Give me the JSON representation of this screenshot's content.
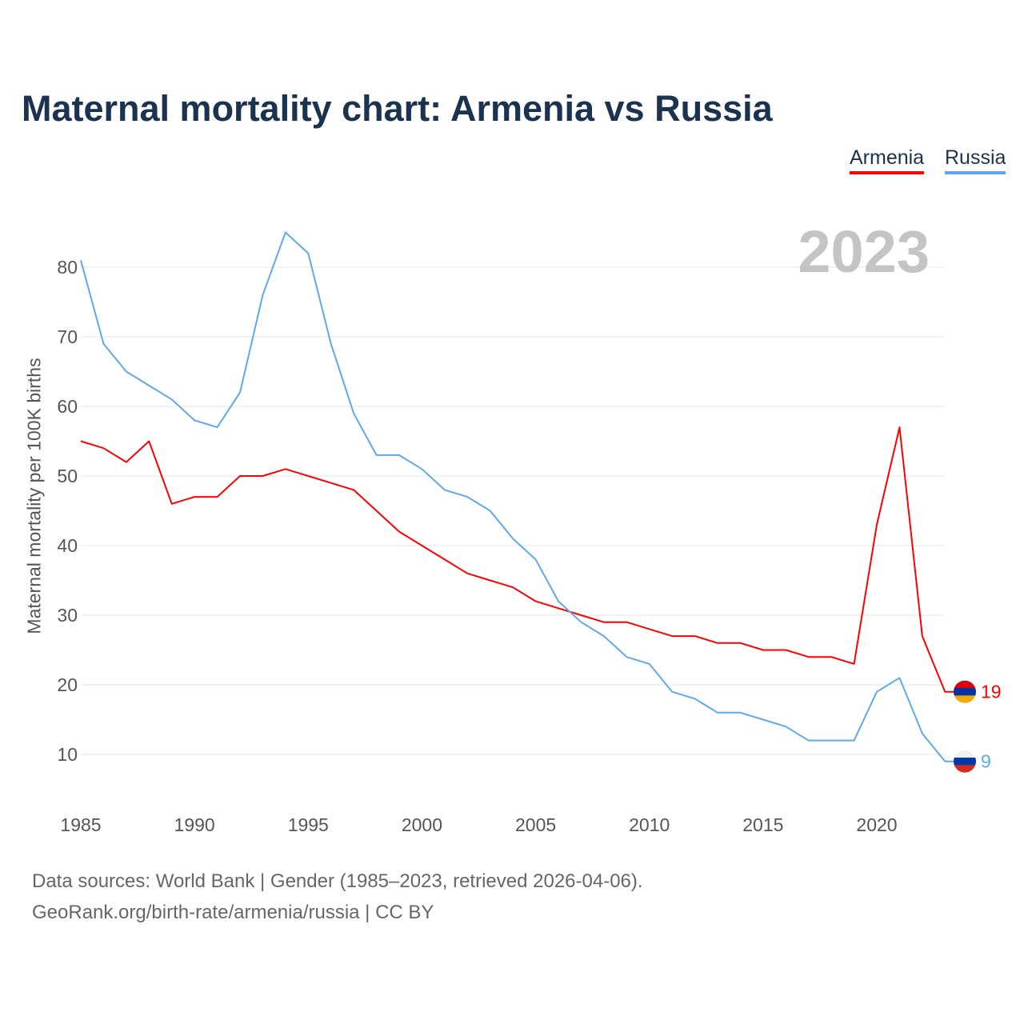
{
  "title": "Maternal mortality chart: Armenia vs Russia",
  "current_year_label": "2023",
  "footer": {
    "line1": "Data sources: World Bank | Gender (1985–2023, retrieved 2026-04-06).",
    "line2": "GeoRank.org/birth-rate/armenia/russia | CC BY"
  },
  "colors": {
    "Armenia": "#ff0000",
    "Russia": "#5fa8ea"
  },
  "chart_data": {
    "type": "line",
    "title": "Maternal mortality chart: Armenia vs Russia",
    "xlabel": "",
    "ylabel": "Maternal mortality per 100K births",
    "xlim": [
      1985,
      2023
    ],
    "ylim": [
      3,
      88
    ],
    "xticks": [
      1985,
      1990,
      1995,
      2000,
      2005,
      2010,
      2015,
      2020
    ],
    "yticks": [
      10,
      20,
      30,
      40,
      50,
      60,
      70,
      80
    ],
    "grid": true,
    "legend_position": "top-right",
    "x": [
      1985,
      1986,
      1987,
      1988,
      1989,
      1990,
      1991,
      1992,
      1993,
      1994,
      1995,
      1996,
      1997,
      1998,
      1999,
      2000,
      2001,
      2002,
      2003,
      2004,
      2005,
      2006,
      2007,
      2008,
      2009,
      2010,
      2011,
      2012,
      2013,
      2014,
      2015,
      2016,
      2017,
      2018,
      2019,
      2020,
      2021,
      2022,
      2023
    ],
    "series": [
      {
        "name": "Armenia",
        "end_label": "19",
        "values": [
          55,
          54,
          52,
          55,
          46,
          47,
          47,
          50,
          50,
          51,
          50,
          49,
          48,
          45,
          42,
          40,
          38,
          36,
          35,
          34,
          32,
          31,
          30,
          29,
          29,
          28,
          27,
          27,
          26,
          26,
          25,
          25,
          24,
          24,
          23,
          43,
          57,
          27,
          19
        ]
      },
      {
        "name": "Russia",
        "end_label": "9",
        "values": [
          81,
          69,
          65,
          63,
          61,
          58,
          57,
          62,
          76,
          85,
          82,
          69,
          59,
          53,
          53,
          51,
          48,
          47,
          45,
          41,
          38,
          32,
          29,
          27,
          24,
          23,
          19,
          18,
          16,
          16,
          15,
          14,
          12,
          12,
          12,
          19,
          21,
          13,
          9
        ]
      }
    ]
  }
}
